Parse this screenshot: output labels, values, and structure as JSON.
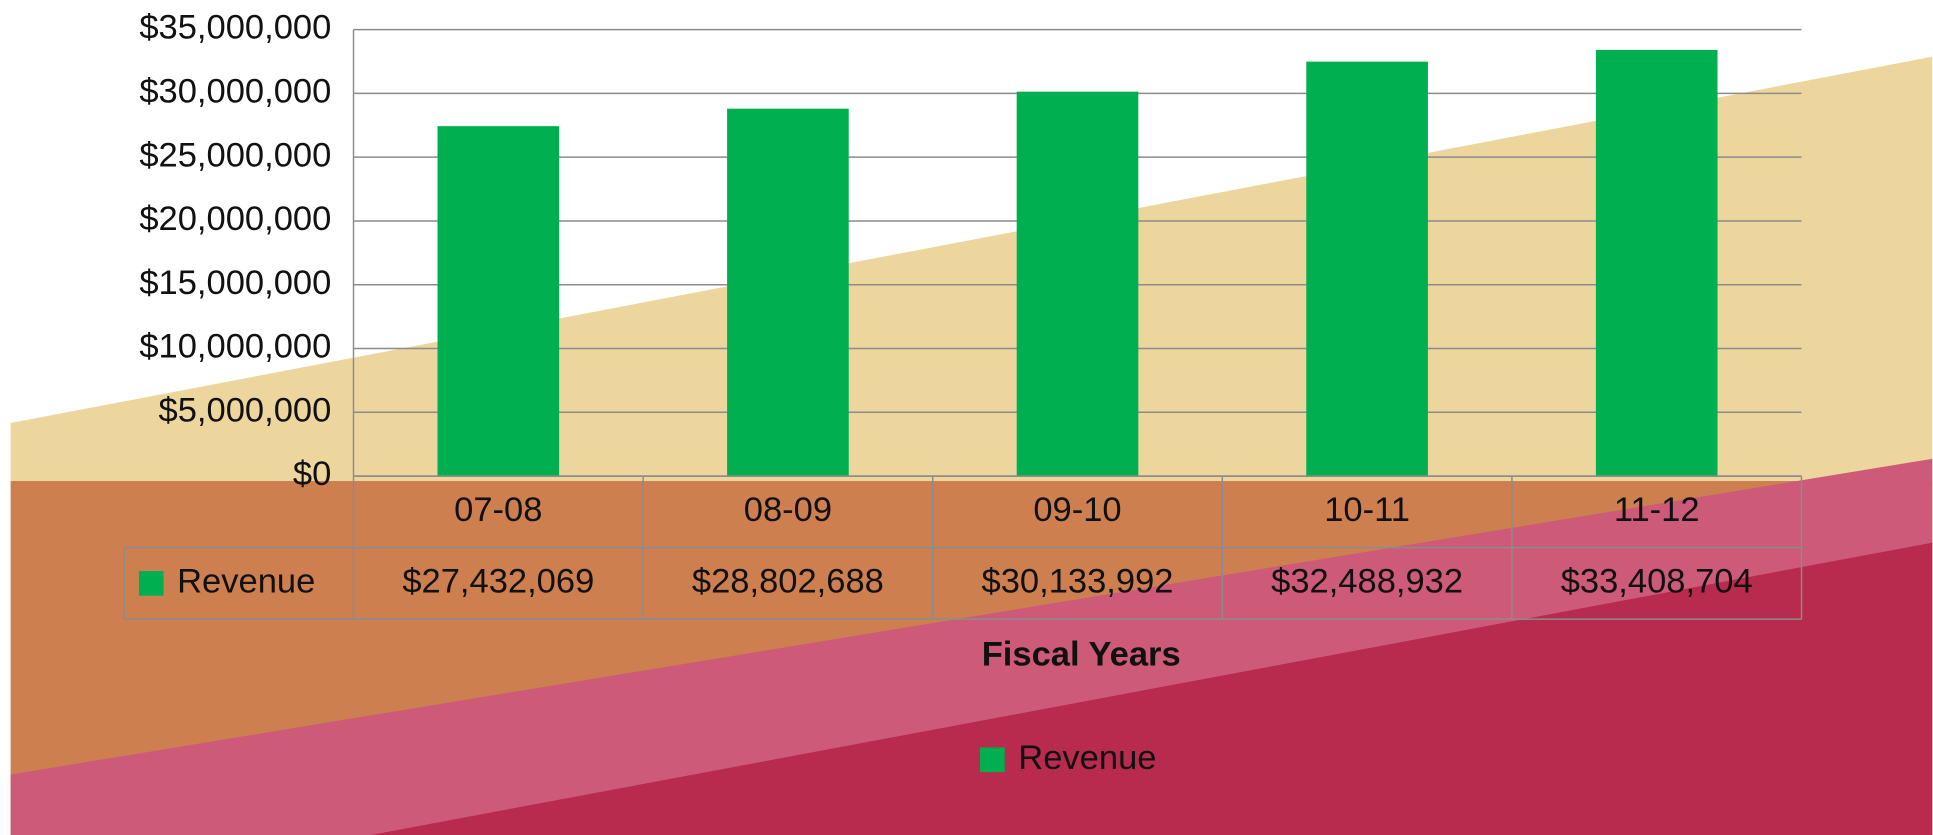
{
  "chart_data": {
    "type": "bar",
    "x_label": "Fiscal Years",
    "categories": [
      "07-08",
      "08-09",
      "09-10",
      "10-11",
      "11-12"
    ],
    "series": [
      {
        "name": "Revenue",
        "color": "#00b050",
        "values": [
          27432069,
          28802688,
          30133992,
          32488932,
          33408704
        ],
        "value_labels": [
          "$27,432,069",
          "$28,802,688",
          "$30,133,992",
          "$32,488,932",
          "$33,408,704"
        ]
      }
    ],
    "ylim": [
      0,
      35000000
    ],
    "yticks": [
      {
        "value": 0,
        "label": "$0"
      },
      {
        "value": 5000000,
        "label": "$5,000,000"
      },
      {
        "value": 10000000,
        "label": "$10,000,000"
      },
      {
        "value": 15000000,
        "label": "$15,000,000"
      },
      {
        "value": 20000000,
        "label": "$20,000,000"
      },
      {
        "value": 25000000,
        "label": "$25,000,000"
      },
      {
        "value": 30000000,
        "label": "$30,000,000"
      },
      {
        "value": 35000000,
        "label": "$35,000,000"
      }
    ],
    "grid": true,
    "legend": "bottom"
  }
}
